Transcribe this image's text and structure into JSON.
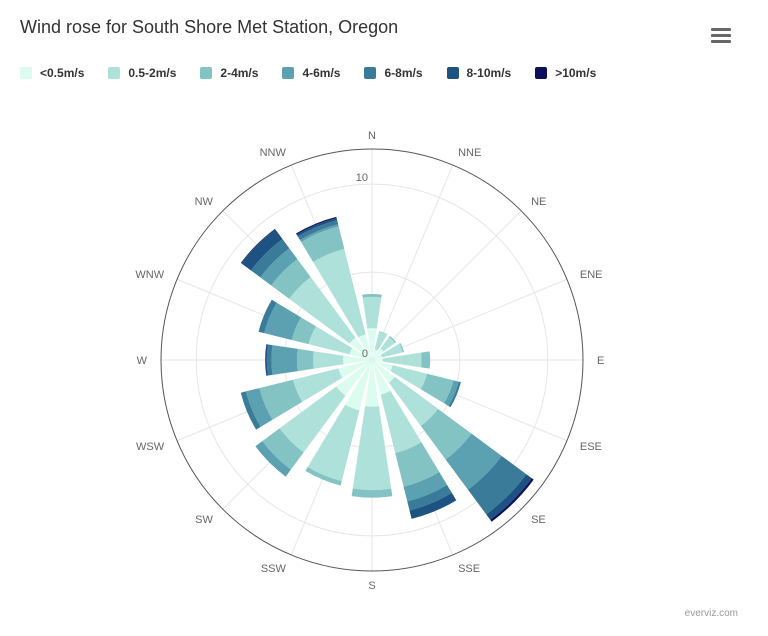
{
  "title": "Wind rose for South Shore Met Station, Oregon",
  "menu_icon": "hamburger-menu-icon",
  "credits": "everviz.com",
  "chart_data": {
    "type": "bar",
    "subtype": "polar-stacked-column",
    "title": "Wind rose for South Shore Met Station, Oregon",
    "categories": [
      "N",
      "NNE",
      "NE",
      "ENE",
      "E",
      "ESE",
      "SE",
      "SSE",
      "S",
      "SSW",
      "SW",
      "WSW",
      "W",
      "WNW",
      "NW",
      "NNW"
    ],
    "ylim": [
      0,
      12
    ],
    "ytick_labels": [
      "0",
      "10"
    ],
    "grid": true,
    "legend_placement": "top-left",
    "series": [
      {
        "name": "<0.5m/s",
        "color": "#dbfcef",
        "values": [
          1.81,
          0.62,
          0.82,
          0.59,
          0.62,
          1.22,
          1.61,
          2.04,
          2.66,
          2.96,
          2.53,
          1.97,
          1.64,
          1.32,
          1.58,
          1.51
        ]
      },
      {
        "name": "0.5-2m/s",
        "color": "#ade1d9",
        "values": [
          1.78,
          1.09,
          0.82,
          1.22,
          2.2,
          2.01,
          3.06,
          3.42,
          4.74,
          4.14,
          4.01,
          2.66,
          1.71,
          2.4,
          4.28,
          5.0
        ]
      },
      {
        "name": "2-4m/s",
        "color": "#84c3c4",
        "values": [
          0.16,
          0.0,
          0.07,
          0.07,
          0.49,
          1.55,
          2.37,
          1.97,
          0.43,
          0.26,
          1.22,
          1.97,
          0.92,
          0.99,
          1.28,
          1.32
        ]
      },
      {
        "name": "4-6m/s",
        "color": "#5ca1b1",
        "values": [
          0,
          0,
          0,
          0,
          0,
          0.3,
          2.14,
          0.86,
          0,
          0,
          0.49,
          0.79,
          1.45,
          1.61,
          0.76,
          0.13
        ]
      },
      {
        "name": "6-8m/s",
        "color": "#3a7b99",
        "values": [
          0,
          0,
          0,
          0,
          0,
          0.13,
          1.74,
          0.53,
          0,
          0,
          0,
          0.3,
          0.26,
          0.33,
          0.66,
          0.23
        ]
      },
      {
        "name": "8-10m/s",
        "color": "#1d5282",
        "values": [
          0,
          0,
          0,
          0,
          0,
          0,
          0.39,
          0.49,
          0,
          0,
          0,
          0,
          0.1,
          0,
          0.69,
          0.13
        ]
      },
      {
        "name": ">10m/s",
        "color": "#0b0f5e",
        "values": [
          0,
          0,
          0,
          0,
          0,
          0,
          0.13,
          0,
          0,
          0,
          0,
          0,
          0,
          0,
          0.03,
          0.07
        ]
      }
    ]
  }
}
